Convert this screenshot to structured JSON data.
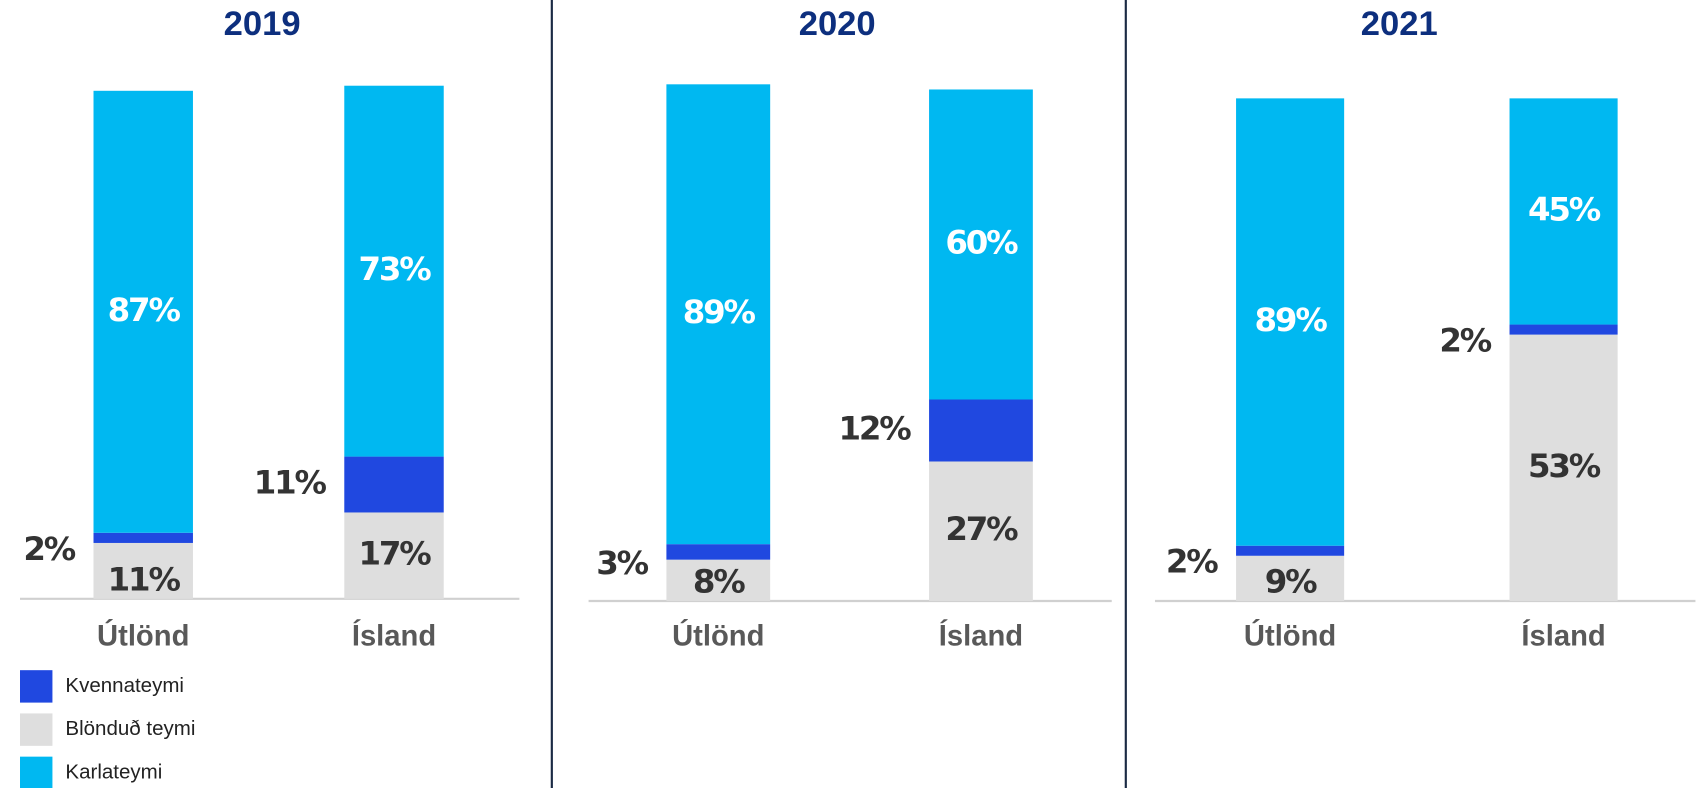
{
  "chart_data": [
    {
      "type": "bar",
      "stacked": true,
      "title": "2019",
      "categories": [
        "Útlönd",
        "Ísland"
      ],
      "series": [
        {
          "name": "Blönduð teymi",
          "color": "#dedede",
          "values": [
            11,
            17
          ],
          "value_labels": [
            "11%",
            "17%"
          ]
        },
        {
          "name": "Kvennateymi",
          "color": "#2048e0",
          "values": [
            2,
            11
          ],
          "value_labels": [
            "2%",
            "11%"
          ]
        },
        {
          "name": "Karlateymi",
          "color": "#00b8f1",
          "values": [
            87,
            73
          ],
          "value_labels": [
            "87%",
            "73%"
          ]
        }
      ],
      "legend": "bottom-left"
    },
    {
      "type": "bar",
      "stacked": true,
      "title": "2020",
      "categories": [
        "Útlönd",
        "Ísland"
      ],
      "series": [
        {
          "name": "Blönduð teymi",
          "color": "#dedede",
          "values": [
            8,
            27
          ],
          "value_labels": [
            "8%",
            "27%"
          ]
        },
        {
          "name": "Kvennateymi",
          "color": "#2048e0",
          "values": [
            3,
            12
          ],
          "value_labels": [
            "3%",
            "12%"
          ]
        },
        {
          "name": "Karlateymi",
          "color": "#00b8f1",
          "values": [
            89,
            60
          ],
          "value_labels": [
            "89%",
            "60%"
          ]
        }
      ]
    },
    {
      "type": "bar",
      "stacked": true,
      "title": "2021",
      "categories": [
        "Útlönd",
        "Ísland"
      ],
      "series": [
        {
          "name": "Blönduð teymi",
          "color": "#dedede",
          "values": [
            9,
            53
          ],
          "value_labels": [
            "9%",
            "53%"
          ]
        },
        {
          "name": "Kvennateymi",
          "color": "#2048e0",
          "values": [
            2,
            2
          ],
          "value_labels": [
            "2%",
            "2%"
          ]
        },
        {
          "name": "Karlateymi",
          "color": "#00b8f1",
          "values": [
            89,
            45
          ],
          "value_labels": [
            "89%",
            "45%"
          ]
        }
      ]
    }
  ]
}
